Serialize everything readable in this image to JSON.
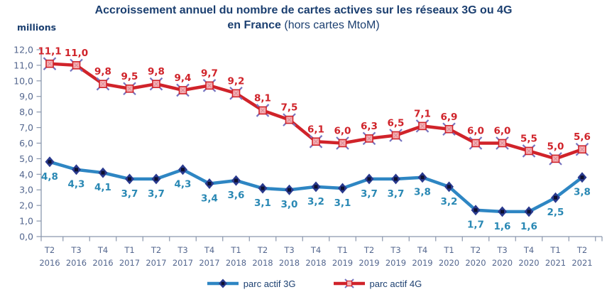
{
  "title": {
    "line1": "Accroissement annuel du nombre de cartes actives sur les réseaux 3G ou 4G",
    "line2_bold": "en France",
    "line2_normal": " (hors cartes MtoM)"
  },
  "axis_unit_label": "millions",
  "colors": {
    "title": "#1B3F70",
    "axis_line": "#8A97AD",
    "axis_label": "#54678F",
    "series_3g_line": "#2E86C3",
    "series_3g_marker": "#2A3A8E",
    "series_3g_label": "#2988B4",
    "series_4g_line": "#D0232A",
    "series_4g_marker_fill": "#F6B0B5",
    "series_4g_x": "#7673C0",
    "series_4g_label": "#D0232A"
  },
  "chart_data": {
    "type": "line",
    "title": "Accroissement annuel du nombre de cartes actives sur les réseaux 3G ou 4G en France (hors cartes MtoM)",
    "ylabel": "millions",
    "ylim": [
      0,
      12
    ],
    "ytick_step": 1,
    "grid": false,
    "legend_position": "bottom",
    "categories": [
      "T2 2016",
      "T3 2016",
      "T4 2016",
      "T1 2017",
      "T2 2017",
      "T3 2017",
      "T4 2017",
      "T1 2018",
      "T2 2018",
      "T3 2018",
      "T4 2018",
      "T1 2019",
      "T2 2019",
      "T3 2019",
      "T4 2019",
      "T1 2020",
      "T2 2020",
      "T3 2020",
      "T4 2020",
      "T1 2021",
      "T2 2021"
    ],
    "series": [
      {
        "id": "3g",
        "name": "parc actif 3G",
        "marker": "diamond",
        "color": "#2E86C3",
        "label_color": "#2988B4",
        "values": [
          4.8,
          4.3,
          4.1,
          3.7,
          3.7,
          4.3,
          3.4,
          3.6,
          3.1,
          3.0,
          3.2,
          3.1,
          3.7,
          3.7,
          3.8,
          3.2,
          1.7,
          1.6,
          1.6,
          2.5,
          3.8
        ]
      },
      {
        "id": "4g",
        "name": "parc actif 4G",
        "marker": "xsquare",
        "color": "#D0232A",
        "label_color": "#D0232A",
        "values": [
          11.1,
          11.0,
          9.8,
          9.5,
          9.8,
          9.4,
          9.7,
          9.2,
          8.1,
          7.5,
          6.1,
          6.0,
          6.3,
          6.5,
          7.1,
          6.9,
          6.0,
          6.0,
          5.5,
          5.0,
          5.6
        ]
      }
    ]
  }
}
